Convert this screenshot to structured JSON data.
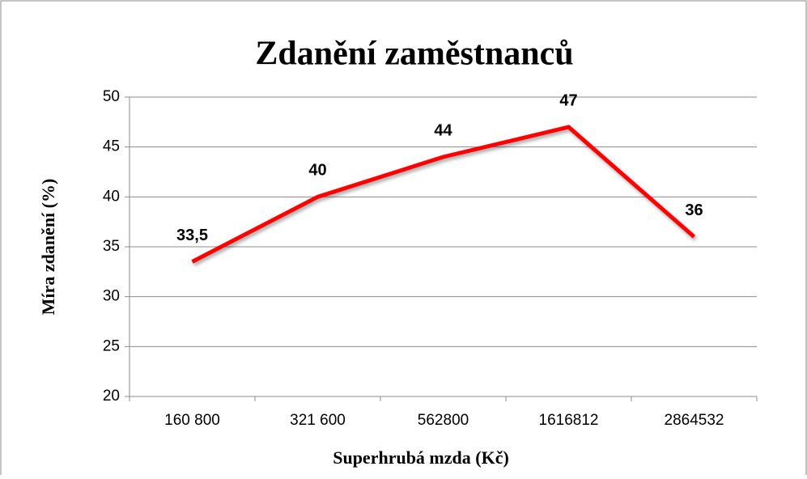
{
  "chart_data": {
    "type": "line",
    "title": "Zdanění zaměstnanců",
    "x_label": "Superhrubá mzda (Kč)",
    "y_label": "Míra zdanění (%)",
    "categories": [
      "160 800",
      "321 600",
      "562800",
      "1616812",
      "2864532"
    ],
    "values": [
      33.5,
      40,
      44,
      47,
      36
    ],
    "value_labels": [
      "33,5",
      "40",
      "44",
      "47",
      "36"
    ],
    "color": "#ff0000",
    "ylim": [
      20,
      50
    ],
    "yticks": [
      20,
      25,
      30,
      35,
      40,
      45,
      50
    ],
    "grid": true
  }
}
